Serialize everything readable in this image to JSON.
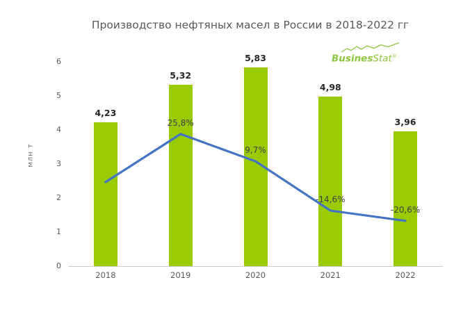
{
  "chart_data": {
    "type": "bar+line combo",
    "title": "Производство нефтяных масел в России в 2018-2022 гг",
    "ylabel": "млн т",
    "xlabel": "",
    "categories": [
      "2018",
      "2019",
      "2020",
      "2021",
      "2022"
    ],
    "bar_series": {
      "id": "oil-production-mln-t",
      "values": [
        4.23,
        5.32,
        5.83,
        4.98,
        3.96
      ],
      "labels": [
        "4,23",
        "5,32",
        "5,83",
        "4,98",
        "3,96"
      ]
    },
    "line_series": {
      "id": "yoy-change-pct",
      "values_pct": [
        null,
        25.8,
        9.7,
        -14.6,
        -20.6
      ],
      "labels": [
        null,
        "25,8%",
        "9,7%",
        "-14,6%",
        "-20,6%"
      ],
      "points_on_primary_axis": [
        2.47,
        3.88,
        3.08,
        1.63,
        1.33
      ]
    },
    "ylim": [
      0,
      6
    ],
    "yticks": [
      "0",
      "1",
      "2",
      "3",
      "4",
      "5",
      "6"
    ],
    "grid": false,
    "legend": "none"
  },
  "logo": {
    "bold": "Busines",
    "light": "Stat",
    "reg": "®",
    "color": "#8DC63F"
  },
  "colors": {
    "bar": "#9ACA00",
    "line": "#4472C4",
    "title_text": "#595959",
    "axis_text": "#595959",
    "value_label": "#262626",
    "pct_label": "#404040",
    "axis_line": "#C9C9C9",
    "background": "#FFFFFF"
  }
}
